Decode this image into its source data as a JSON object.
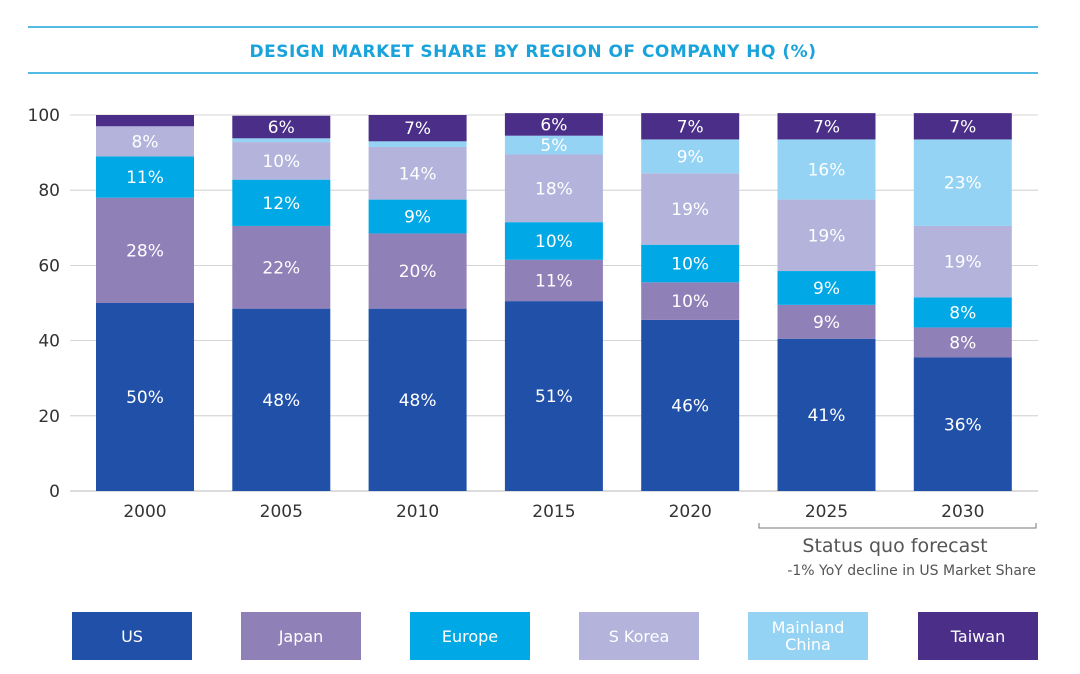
{
  "chart_data": {
    "type": "bar",
    "stacked": true,
    "title": "DESIGN MARKET SHARE BY REGION OF COMPANY HQ (%)",
    "xlabel": "",
    "ylabel": "",
    "ylim": [
      0,
      100
    ],
    "yticks": [
      0,
      20,
      40,
      60,
      80,
      100
    ],
    "categories": [
      "2000",
      "2005",
      "2010",
      "2015",
      "2020",
      "2025",
      "2030"
    ],
    "series": [
      {
        "name": "US",
        "color": "#2150a8",
        "values": [
          50,
          48.5,
          48.5,
          50.5,
          45.5,
          40.5,
          35.5
        ],
        "labels": [
          "50%",
          "48%",
          "48%",
          "51%",
          "46%",
          "41%",
          "36%"
        ]
      },
      {
        "name": "Japan",
        "color": "#9080b8",
        "values": [
          28,
          22,
          20,
          11,
          10,
          9,
          8
        ],
        "labels": [
          "28%",
          "22%",
          "20%",
          "11%",
          "10%",
          "9%",
          "8%"
        ]
      },
      {
        "name": "Europe",
        "color": "#00a9e6",
        "values": [
          11,
          12.3,
          9,
          10,
          10,
          9,
          8
        ],
        "labels": [
          "11%",
          "12%",
          "9%",
          "10%",
          "10%",
          "9%",
          "8%"
        ]
      },
      {
        "name": "S Korea",
        "color": "#b3b3dc",
        "values": [
          8,
          10,
          14,
          18,
          19,
          19,
          19
        ],
        "labels": [
          "8%",
          "10%",
          "14%",
          "18%",
          "19%",
          "19%",
          "19%"
        ]
      },
      {
        "name": "Mainland China",
        "color": "#94d3f3",
        "values": [
          0,
          1,
          1.5,
          5,
          9,
          16,
          23
        ],
        "labels": [
          "",
          "",
          "",
          "5%",
          "9%",
          "16%",
          "23%"
        ]
      },
      {
        "name": "Taiwan",
        "color": "#4a2e88",
        "values": [
          3,
          6,
          7,
          6,
          7,
          7,
          7
        ],
        "labels": [
          "",
          "6%",
          "7%",
          "6%",
          "7%",
          "7%",
          "7%"
        ]
      }
    ],
    "legend": [
      "US",
      "Japan",
      "Europe",
      "S Korea",
      "Mainland China",
      "Taiwan"
    ],
    "legend_position": "bottom",
    "annotation": {
      "title": "Status quo forecast",
      "subtitle": "-1% YoY decline in US Market Share",
      "categories": [
        "2025",
        "2030"
      ]
    }
  },
  "colors": {
    "accent": "#1aa3db",
    "grid": "#c8c8c8"
  },
  "legend_labels": {
    "us": "US",
    "japan": "Japan",
    "europe": "Europe",
    "s_korea": "S Korea",
    "mainland_china_line1": "Mainland",
    "mainland_china_line2": "China",
    "taiwan": "Taiwan"
  }
}
